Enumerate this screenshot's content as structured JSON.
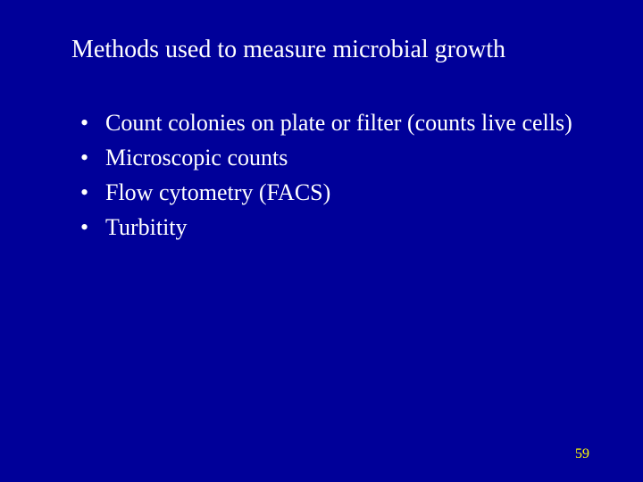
{
  "slide": {
    "background_color": "#000099",
    "text_color": "#ffffff",
    "page_number_color": "#ffff00",
    "font_family": "Times New Roman",
    "title": "Methods used to measure microbial growth",
    "title_fontsize": 28,
    "bullet_fontsize": 26,
    "bullets": [
      "Count colonies on plate or filter (counts live cells)",
      "Microscopic counts",
      "Flow cytometry (FACS)",
      "Turbitity"
    ],
    "page_number": "59",
    "page_number_fontsize": 16
  }
}
